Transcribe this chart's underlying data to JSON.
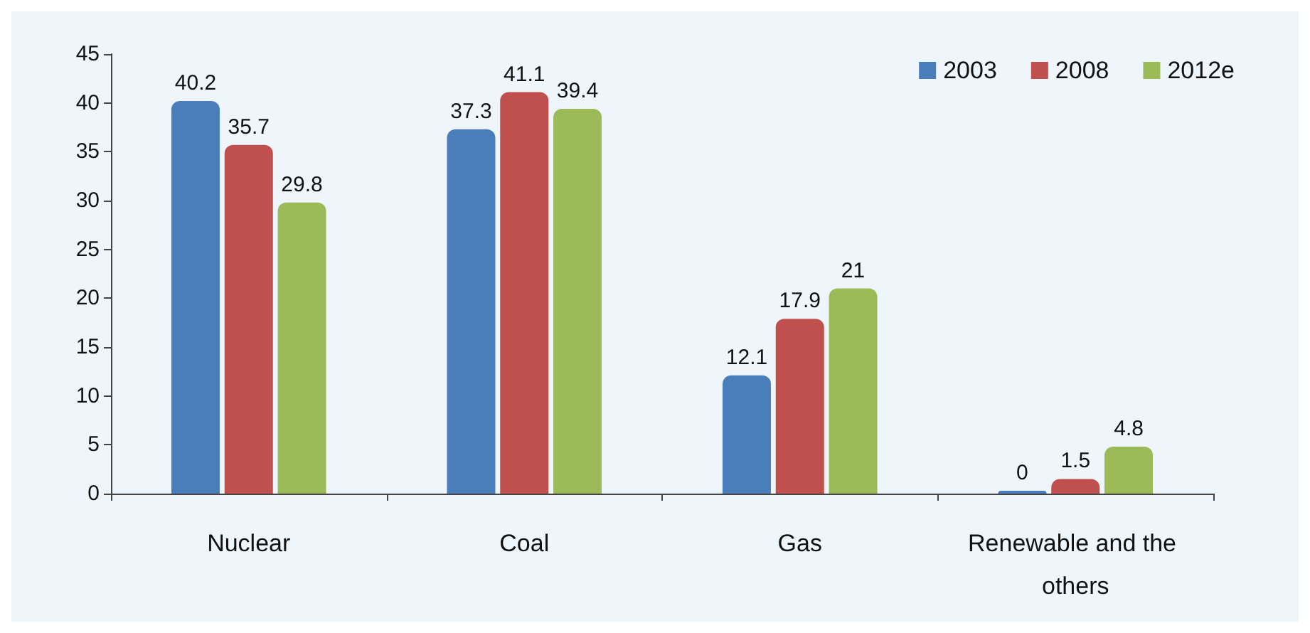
{
  "chart_data": {
    "type": "bar",
    "categories": [
      "Nuclear",
      "Coal",
      "Gas",
      "Renewable and the others"
    ],
    "series": [
      {
        "name": "2003",
        "color": "#4a7ebb",
        "values": [
          40.2,
          37.3,
          12.1,
          0
        ]
      },
      {
        "name": "2008",
        "color": "#c0504d",
        "values": [
          35.7,
          41.1,
          17.9,
          1.5
        ]
      },
      {
        "name": "2012e",
        "color": "#9bbb59",
        "values": [
          29.8,
          39.4,
          21,
          4.8
        ]
      }
    ],
    "ylim": [
      0,
      45
    ],
    "yticks": [
      0,
      5,
      10,
      15,
      20,
      25,
      30,
      35,
      40,
      45
    ],
    "grid": false,
    "legend": "top right",
    "data_labels": true
  }
}
